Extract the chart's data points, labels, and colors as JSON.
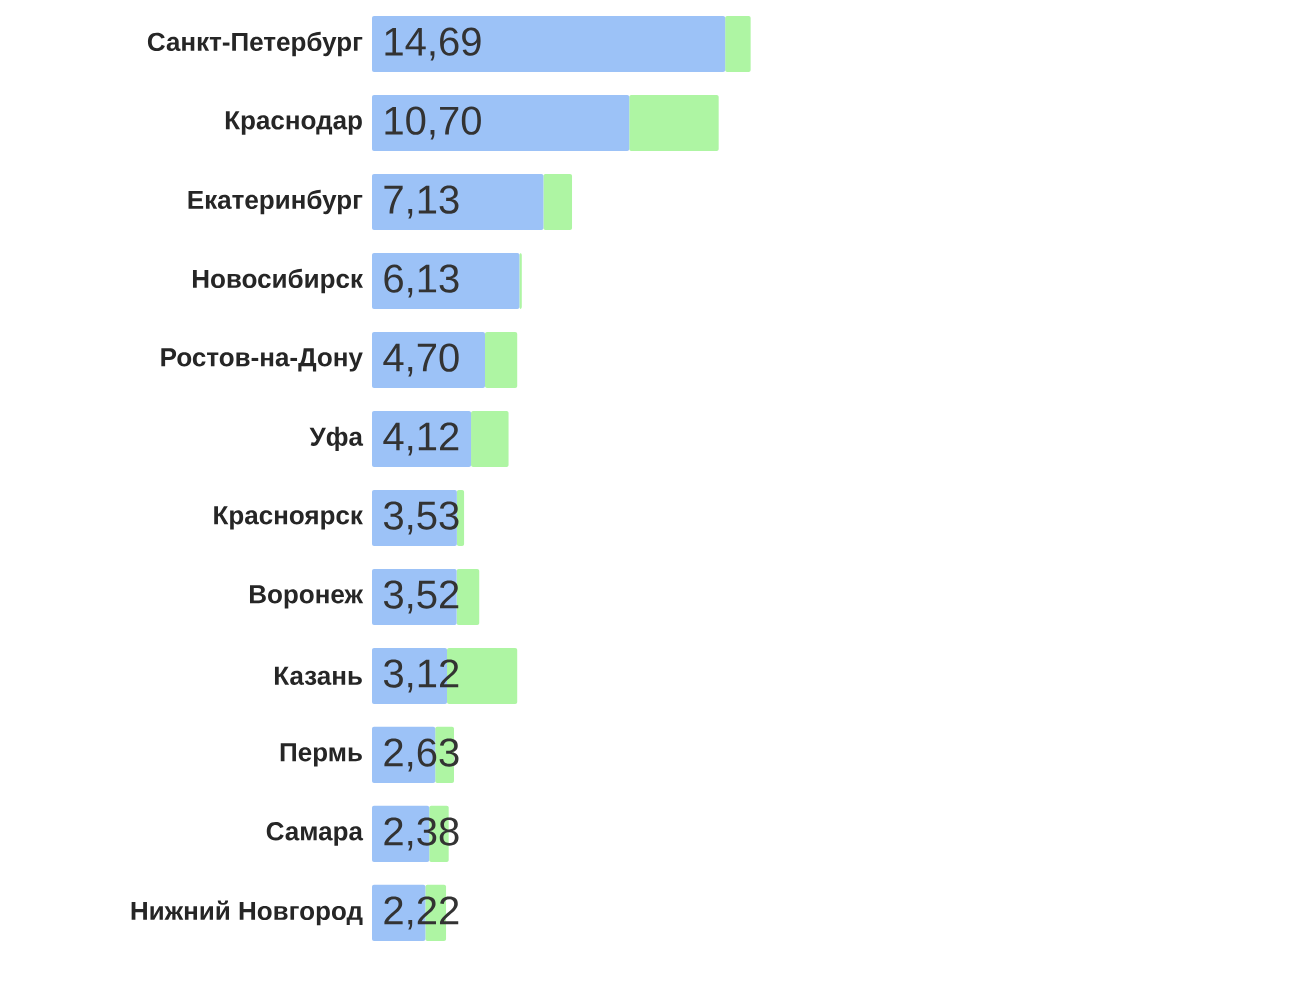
{
  "chart_data": {
    "type": "bar",
    "orientation": "horizontal",
    "stacked": true,
    "categories": [
      "Санкт-Петербург",
      "Краснодар",
      "Екатеринбург",
      "Новосибирск",
      "Ростов-на-Дону",
      "Уфа",
      "Красноярск",
      "Воронеж",
      "Казань",
      "Пермь",
      "Самара",
      "Нижний Новгород"
    ],
    "series": [
      {
        "color": "#9cc2f7",
        "values": [
          14.69,
          10.7,
          7.13,
          6.13,
          4.7,
          4.12,
          3.53,
          3.52,
          3.12,
          2.63,
          2.38,
          2.22
        ],
        "value_labels": [
          "14,69",
          "10,70",
          "7,13",
          "6,13",
          "4,70",
          "4,12",
          "3,53",
          "3,52",
          "3,12",
          "2,63",
          "2,38",
          "2,22"
        ]
      },
      {
        "color": "#aef5a3",
        "values": [
          1.06,
          3.72,
          1.19,
          0.1,
          1.34,
          1.56,
          0.3,
          0.94,
          2.92,
          0.78,
          0.81,
          0.86
        ]
      }
    ]
  }
}
